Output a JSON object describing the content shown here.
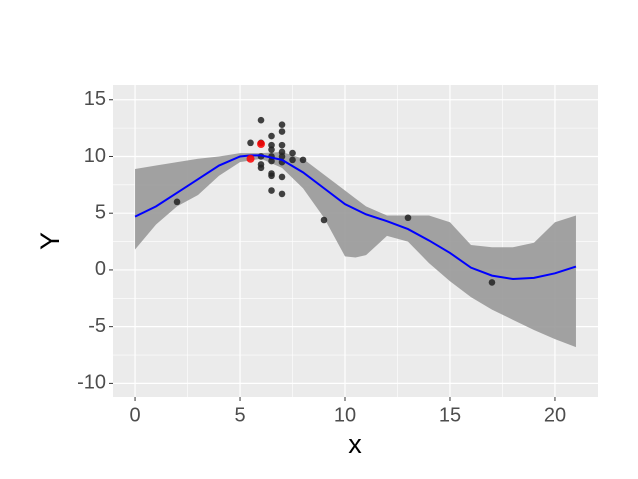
{
  "chart_data": {
    "type": "scatter",
    "x_label": "x",
    "y_label": "Y",
    "xlim": [
      -1.05,
      22.05
    ],
    "ylim": [
      -11.2,
      16.3
    ],
    "xticks": [
      0,
      5,
      10,
      15,
      20
    ],
    "yticks": [
      -10,
      -5,
      0,
      5,
      10,
      15
    ],
    "grid": true,
    "band": {
      "color": "#999999",
      "x": [
        0,
        1,
        2,
        3,
        4,
        5,
        6,
        7,
        8,
        9,
        10,
        10.5,
        11,
        12,
        13,
        14,
        15,
        16,
        17,
        18,
        19,
        20,
        21
      ],
      "upper": [
        8.9,
        9.2,
        9.5,
        9.8,
        10.0,
        10.3,
        10.3,
        10.4,
        9.8,
        8.4,
        7.0,
        6.3,
        5.6,
        4.8,
        4.8,
        4.8,
        4.2,
        2.2,
        2.0,
        2.0,
        2.4,
        4.2,
        4.8
      ],
      "lower": [
        1.8,
        4.0,
        5.6,
        6.6,
        8.3,
        9.5,
        9.8,
        9.0,
        7.2,
        4.6,
        1.2,
        1.1,
        1.3,
        3.0,
        2.5,
        0.6,
        -1.0,
        -2.4,
        -3.5,
        -4.4,
        -5.3,
        -6.1,
        -6.8
      ]
    },
    "smooth": {
      "color": "#0000ff",
      "x": [
        0,
        1,
        2,
        3,
        4,
        5,
        5.5,
        6,
        7,
        8,
        9,
        10,
        11,
        12,
        13,
        14,
        15,
        16,
        17,
        18,
        19,
        20,
        21
      ],
      "y": [
        4.7,
        5.6,
        6.8,
        8.0,
        9.2,
        10.0,
        10.1,
        10.1,
        9.7,
        8.6,
        7.2,
        5.8,
        4.9,
        4.3,
        3.6,
        2.6,
        1.5,
        0.2,
        -0.5,
        -0.8,
        -0.7,
        -0.3,
        0.3
      ]
    },
    "points": {
      "color": "#222222",
      "x": [
        2,
        9,
        13,
        17,
        5.5,
        6,
        6,
        6,
        6,
        6,
        6.5,
        6.5,
        6.5,
        6.5,
        6.5,
        6.5,
        6.5,
        6.5,
        7,
        7,
        7,
        7,
        7,
        7,
        7,
        7,
        7.5,
        7.5,
        8
      ],
      "y": [
        6,
        4.4,
        4.6,
        -1.1,
        11.2,
        13.2,
        11.2,
        10,
        9.3,
        9,
        11.8,
        11,
        10.6,
        10,
        9.6,
        8.5,
        8.3,
        7,
        12.8,
        12.2,
        11,
        10.4,
        10,
        9.5,
        8.2,
        6.7,
        10.3,
        9.7,
        9.7
      ]
    },
    "highlighted": {
      "color": "#ff0000",
      "x": [
        5.5,
        6
      ],
      "y": [
        9.8,
        11.1
      ]
    }
  }
}
